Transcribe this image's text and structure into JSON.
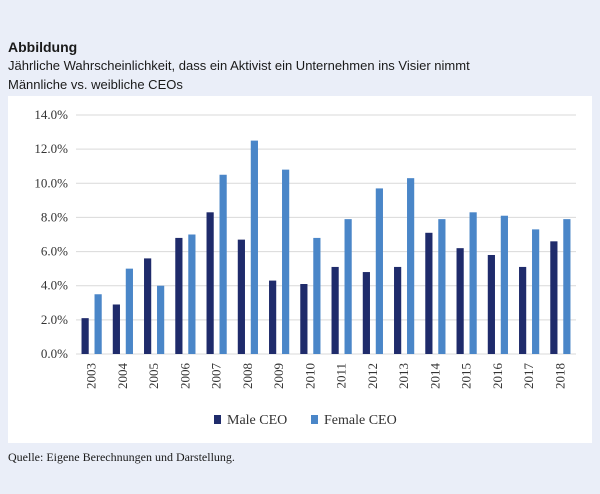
{
  "header": {
    "label": "Abbildung",
    "title": "Jährliche Wahrscheinlichkeit, dass ein Aktivist ein Unternehmen ins Visier nimmt",
    "subtitle": "Männliche vs. weibliche CEOs"
  },
  "footer": {
    "source": "Quelle: Eigene Berechnungen und Darstellung."
  },
  "colors": {
    "male": "#1f2b6b",
    "female": "#4a86c8",
    "grid": "#d9d9d9",
    "background": "#eaeef8"
  },
  "chart_data": {
    "type": "bar",
    "categories": [
      "2003",
      "2004",
      "2005",
      "2006",
      "2007",
      "2008",
      "2009",
      "2010",
      "2011",
      "2012",
      "2013",
      "2014",
      "2015",
      "2016",
      "2017",
      "2018"
    ],
    "series": [
      {
        "name": "Male CEO",
        "values": [
          2.1,
          2.9,
          5.6,
          6.8,
          8.3,
          6.7,
          4.3,
          4.1,
          5.1,
          4.8,
          5.1,
          7.1,
          6.2,
          5.8,
          5.1,
          6.6
        ]
      },
      {
        "name": "Female CEO",
        "values": [
          3.5,
          5.0,
          4.0,
          7.0,
          10.5,
          12.5,
          10.8,
          6.8,
          7.9,
          9.7,
          10.3,
          7.9,
          8.3,
          8.1,
          7.3,
          7.9
        ]
      }
    ],
    "yticks": [
      "0.0%",
      "2.0%",
      "4.0%",
      "6.0%",
      "8.0%",
      "10.0%",
      "12.0%",
      "14.0%"
    ],
    "ylim": [
      0,
      14
    ],
    "grid": true,
    "legend": "bottom"
  }
}
